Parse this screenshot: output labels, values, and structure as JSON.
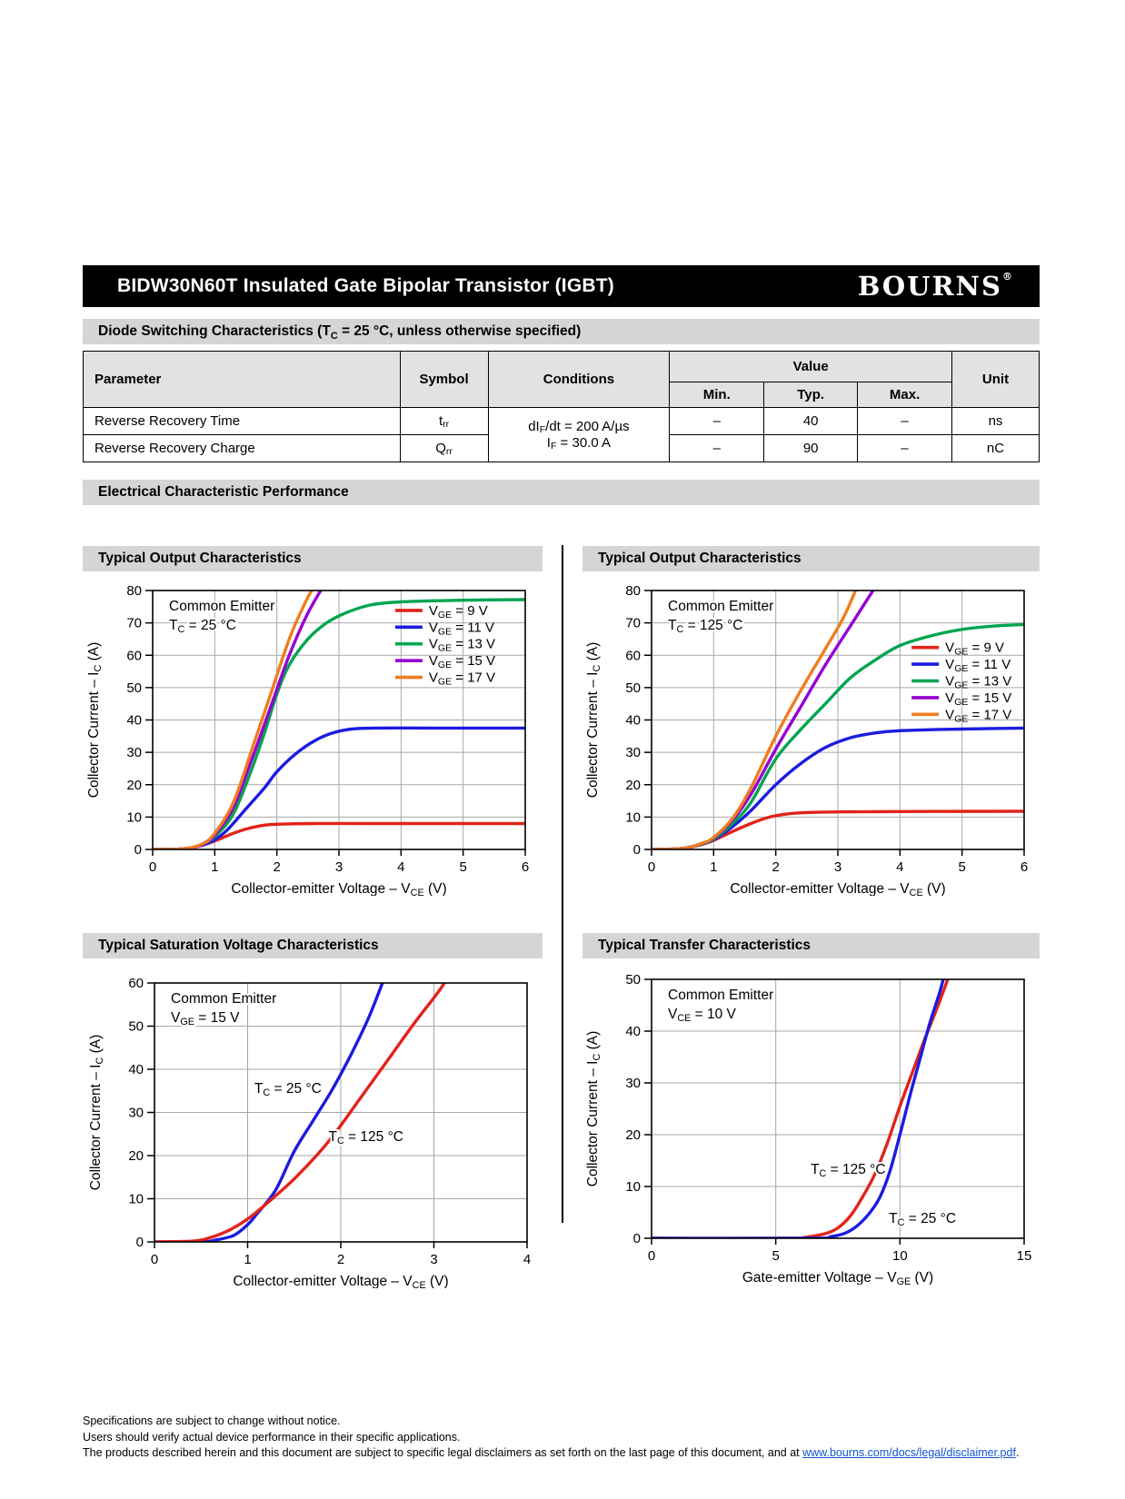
{
  "header": {
    "title": "BIDW30N60T Insulated Gate Bipolar Transistor (IGBT)",
    "logo": "BOURNS",
    "logo_reg": "®"
  },
  "section1": {
    "title": "Diode Switching Characteristics (T_{C} = 25 °C, unless otherwise specified)"
  },
  "section2": {
    "title": "Electrical Characteristic Performance"
  },
  "table": {
    "headers": {
      "parameter": "Parameter",
      "symbol": "Symbol",
      "conditions": "Conditions",
      "value": "Value",
      "min": "Min.",
      "typ": "Typ.",
      "max": "Max.",
      "unit": "Unit"
    },
    "conditions_lines": [
      "dI_{F}/dt = 200 A/µs",
      "I_{F} = 30.0 A"
    ],
    "rows": [
      {
        "parameter": "Reverse Recovery Time",
        "symbol": "t_{rr}",
        "min": "–",
        "typ": "40",
        "max": "–",
        "unit": "ns"
      },
      {
        "parameter": "Reverse Recovery Charge",
        "symbol": "Q_{rr}",
        "min": "–",
        "typ": "90",
        "max": "–",
        "unit": "nC"
      }
    ]
  },
  "footer": {
    "line1": "Specifications are subject to change without notice.",
    "line2": "Users should verify actual device performance in their specific applications.",
    "line3_pre": "The products described herein and this document are subject to specific legal disclaimers as set forth on the last page of this document, and at ",
    "line3_link": "www.bourns.com/docs/legal/disclaimer.pdf",
    "line3_post": "."
  },
  "colors": {
    "red": "#e2231a",
    "blue": "#1b1be0",
    "green": "#00a550",
    "purple": "#9400d3",
    "orange": "#f07d20"
  },
  "chart_data": [
    {
      "type": "line",
      "title": "Typical Output Characteristics",
      "xlabel": "Collector-emitter Voltage – V_{CE} (V)",
      "ylabel": "Collector Current – I_{C} (A)",
      "xlim": [
        0,
        6
      ],
      "ylim": [
        0,
        80
      ],
      "xticks": [
        0,
        1,
        2,
        3,
        4,
        5,
        6
      ],
      "yticks": [
        0,
        10,
        20,
        30,
        40,
        50,
        60,
        70,
        80
      ],
      "grid": true,
      "notes": [
        {
          "lines": [
            "Common Emitter",
            "T_{C} = 25 °C"
          ]
        }
      ],
      "legend": {
        "fx": 0.651,
        "fy": 0.077,
        "labels": [
          "V_{GE} = 9 V",
          "V_{GE} = 11 V",
          "V_{GE} = 13 V",
          "V_{GE} = 15 V",
          "V_{GE} = 17 V"
        ]
      },
      "labels": [],
      "series": [
        {
          "name": "VGE = 9 V",
          "color": "#e2231a",
          "points": [
            [
              0,
              0
            ],
            [
              0.45,
              0.15
            ],
            [
              0.7,
              0.8
            ],
            [
              0.9,
              1.9
            ],
            [
              1.1,
              3.4
            ],
            [
              1.3,
              5
            ],
            [
              1.5,
              6.3
            ],
            [
              1.7,
              7.2
            ],
            [
              1.9,
              7.7
            ],
            [
              2.2,
              7.9
            ],
            [
              2.6,
              8
            ],
            [
              3.5,
              8
            ],
            [
              6,
              8
            ]
          ]
        },
        {
          "name": "VGE = 11 V",
          "color": "#1b1be0",
          "points": [
            [
              0,
              0
            ],
            [
              0.5,
              0.2
            ],
            [
              0.8,
              1.3
            ],
            [
              1,
              3
            ],
            [
              1.2,
              6
            ],
            [
              1.5,
              12.5
            ],
            [
              1.8,
              19
            ],
            [
              2,
              24
            ],
            [
              2.3,
              29.5
            ],
            [
              2.6,
              33.5
            ],
            [
              2.9,
              36
            ],
            [
              3.2,
              37.2
            ],
            [
              3.6,
              37.5
            ],
            [
              4.5,
              37.5
            ],
            [
              6,
              37.5
            ]
          ]
        },
        {
          "name": "VGE = 13 V",
          "color": "#00a550",
          "points": [
            [
              0,
              0
            ],
            [
              0.5,
              0.2
            ],
            [
              0.8,
              1.5
            ],
            [
              1,
              4
            ],
            [
              1.3,
              11
            ],
            [
              1.6,
              25
            ],
            [
              1.8,
              36
            ],
            [
              2,
              48
            ],
            [
              2.2,
              57
            ],
            [
              2.5,
              65
            ],
            [
              2.8,
              70
            ],
            [
              3.1,
              73
            ],
            [
              3.5,
              75.5
            ],
            [
              4,
              76.5
            ],
            [
              5,
              77
            ],
            [
              6,
              77.2
            ]
          ]
        },
        {
          "name": "VGE = 15 V",
          "color": "#9400d3",
          "points": [
            [
              0,
              0
            ],
            [
              0.5,
              0.2
            ],
            [
              0.8,
              1.5
            ],
            [
              1,
              4.5
            ],
            [
              1.3,
              13
            ],
            [
              1.6,
              28
            ],
            [
              1.9,
              44
            ],
            [
              2.2,
              60
            ],
            [
              2.5,
              73
            ],
            [
              2.8,
              83
            ]
          ]
        },
        {
          "name": "VGE = 17 V",
          "color": "#f07d20",
          "points": [
            [
              0,
              0
            ],
            [
              0.5,
              0.2
            ],
            [
              0.8,
              1.7
            ],
            [
              1,
              5
            ],
            [
              1.3,
              14.5
            ],
            [
              1.6,
              31
            ],
            [
              1.9,
              48
            ],
            [
              2.2,
              65
            ],
            [
              2.45,
              76
            ],
            [
              2.65,
              83
            ]
          ]
        }
      ]
    },
    {
      "type": "line",
      "title": "Typical Output Characteristics",
      "xlabel": "Collector-emitter Voltage – V_{CE} (V)",
      "ylabel": "Collector Current – I_{C} (A)",
      "xlim": [
        0,
        6
      ],
      "ylim": [
        0,
        80
      ],
      "xticks": [
        0,
        1,
        2,
        3,
        4,
        5,
        6
      ],
      "yticks": [
        0,
        10,
        20,
        30,
        40,
        50,
        60,
        70,
        80
      ],
      "grid": true,
      "notes": [
        {
          "lines": [
            "Common Emitter",
            "T_{C} = 125 °C"
          ]
        }
      ],
      "legend": {
        "fx": 0.698,
        "fy": 0.22,
        "labels": [
          "V_{GE} = 9 V",
          "V_{GE} = 11 V",
          "V_{GE} = 13 V",
          "V_{GE} = 15 V",
          "V_{GE} = 17 V"
        ]
      },
      "labels": [],
      "series": [
        {
          "name": "VGE = 9 V",
          "color": "#e2231a",
          "points": [
            [
              0,
              0
            ],
            [
              0.5,
              0.3
            ],
            [
              0.8,
              1.5
            ],
            [
              1,
              2.8
            ],
            [
              1.3,
              5.5
            ],
            [
              1.6,
              8
            ],
            [
              1.9,
              10
            ],
            [
              2.2,
              11
            ],
            [
              2.5,
              11.4
            ],
            [
              3,
              11.6
            ],
            [
              4,
              11.7
            ],
            [
              6,
              11.8
            ]
          ]
        },
        {
          "name": "VGE = 11 V",
          "color": "#1b1be0",
          "points": [
            [
              0,
              0
            ],
            [
              0.5,
              0.3
            ],
            [
              0.8,
              1.6
            ],
            [
              1,
              3
            ],
            [
              1.3,
              7
            ],
            [
              1.6,
              12
            ],
            [
              2,
              20
            ],
            [
              2.4,
              26.5
            ],
            [
              2.8,
              31.5
            ],
            [
              3.2,
              34.5
            ],
            [
              3.6,
              36
            ],
            [
              4,
              36.7
            ],
            [
              4.5,
              37
            ],
            [
              5,
              37.2
            ],
            [
              6,
              37.5
            ]
          ]
        },
        {
          "name": "VGE = 13 V",
          "color": "#00a550",
          "points": [
            [
              0,
              0
            ],
            [
              0.5,
              0.3
            ],
            [
              0.8,
              1.7
            ],
            [
              1,
              3.2
            ],
            [
              1.3,
              8
            ],
            [
              1.6,
              14.5
            ],
            [
              2,
              28
            ],
            [
              2.4,
              37
            ],
            [
              2.8,
              45
            ],
            [
              3.2,
              53
            ],
            [
              3.6,
              58.5
            ],
            [
              4,
              63
            ],
            [
              4.5,
              66
            ],
            [
              5,
              68
            ],
            [
              5.5,
              69
            ],
            [
              6,
              69.5
            ]
          ]
        },
        {
          "name": "VGE = 15 V",
          "color": "#9400d3",
          "points": [
            [
              0,
              0
            ],
            [
              0.5,
              0.3
            ],
            [
              0.8,
              1.8
            ],
            [
              1,
              3.5
            ],
            [
              1.3,
              9
            ],
            [
              1.6,
              17
            ],
            [
              2,
              31
            ],
            [
              2.4,
              44
            ],
            [
              2.8,
              57
            ],
            [
              3.2,
              69
            ],
            [
              3.7,
              84
            ]
          ]
        },
        {
          "name": "VGE = 17 V",
          "color": "#f07d20",
          "points": [
            [
              0,
              0
            ],
            [
              0.5,
              0.3
            ],
            [
              0.8,
              1.8
            ],
            [
              1,
              3.7
            ],
            [
              1.3,
              9.5
            ],
            [
              1.6,
              19
            ],
            [
              2,
              35
            ],
            [
              2.4,
              49
            ],
            [
              2.8,
              62
            ],
            [
              3.1,
              72
            ],
            [
              3.35,
              83
            ]
          ]
        }
      ]
    },
    {
      "type": "line",
      "title": "Typical Saturation Voltage Characteristics",
      "xlabel": "Collector-emitter Voltage – V_{CE} (V)",
      "ylabel": "Collector Current – I_{C} (A)",
      "xlim": [
        0,
        4
      ],
      "ylim": [
        0,
        60
      ],
      "xticks": [
        0,
        1,
        2,
        3,
        4
      ],
      "yticks": [
        0,
        10,
        20,
        30,
        40,
        50,
        60
      ],
      "grid": true,
      "notes": [
        {
          "lines": [
            "Common Emitter",
            "V_{GE} = 15 V"
          ]
        }
      ],
      "legend": null,
      "labels": [
        {
          "fx": 0.268,
          "fy": 0.425,
          "text": "T_{C} = 25 °C"
        },
        {
          "fx": 0.467,
          "fy": 0.61,
          "text": "T_{C} = 125 °C"
        }
      ],
      "series": [
        {
          "name": "TC = 25 °C",
          "color": "#1b1be0",
          "points": [
            [
              0,
              0
            ],
            [
              0.5,
              0
            ],
            [
              0.65,
              0.4
            ],
            [
              0.85,
              1.5
            ],
            [
              1,
              4
            ],
            [
              1.1,
              6.5
            ],
            [
              1.3,
              12
            ],
            [
              1.5,
              21
            ],
            [
              1.7,
              28
            ],
            [
              1.9,
              35
            ],
            [
              2.1,
              43
            ],
            [
              2.3,
              52
            ],
            [
              2.5,
              63
            ]
          ]
        },
        {
          "name": "TC = 125 °C",
          "color": "#e2231a",
          "points": [
            [
              0,
              0
            ],
            [
              0.42,
              0.2
            ],
            [
              0.6,
              1
            ],
            [
              0.8,
              2.7
            ],
            [
              1,
              5.3
            ],
            [
              1.2,
              8.8
            ],
            [
              1.5,
              14.6
            ],
            [
              1.8,
              21.5
            ],
            [
              2,
              27
            ],
            [
              2.2,
              33
            ],
            [
              2.5,
              42
            ],
            [
              2.8,
              51
            ],
            [
              3.05,
              58
            ],
            [
              3.2,
              63
            ]
          ]
        }
      ]
    },
    {
      "type": "line",
      "title": "Typical Transfer Characteristics",
      "xlabel": "Gate-emitter Voltage – V_{GE} (V)",
      "ylabel": "Collector Current – I_{C} (A)",
      "xlim": [
        0,
        15
      ],
      "ylim": [
        0,
        50
      ],
      "xticks": [
        0,
        5,
        10,
        15
      ],
      "yticks": [
        0,
        10,
        20,
        30,
        40,
        50
      ],
      "grid": true,
      "notes": [
        {
          "lines": [
            "Common Emitter",
            "V_{CE} = 10 V"
          ]
        }
      ],
      "legend": null,
      "labels": [
        {
          "fx": 0.427,
          "fy": 0.75,
          "text": "T_{C} = 125 °C"
        },
        {
          "fx": 0.637,
          "fy": 0.94,
          "text": "T_{C} = 25 °C"
        }
      ],
      "series": [
        {
          "name": "TC = 125 °C",
          "color": "#e2231a",
          "points": [
            [
              0,
              0
            ],
            [
              5.5,
              0
            ],
            [
              6.2,
              0.2
            ],
            [
              7,
              0.9
            ],
            [
              7.5,
              2
            ],
            [
              8,
              4.3
            ],
            [
              8.5,
              8
            ],
            [
              9,
              12.5
            ],
            [
              9.5,
              18.5
            ],
            [
              10,
              25.5
            ],
            [
              10.5,
              32
            ],
            [
              11,
              38.5
            ],
            [
              11.5,
              44.5
            ],
            [
              12,
              51
            ]
          ]
        },
        {
          "name": "TC = 25 °C",
          "color": "#1b1be0",
          "points": [
            [
              0,
              0
            ],
            [
              6.5,
              0
            ],
            [
              7.2,
              0.3
            ],
            [
              7.8,
              1
            ],
            [
              8.3,
              2.5
            ],
            [
              8.8,
              5
            ],
            [
              9.2,
              8
            ],
            [
              9.6,
              13
            ],
            [
              10,
              20
            ],
            [
              10.4,
              27.5
            ],
            [
              10.8,
              34.5
            ],
            [
              11.2,
              41.5
            ],
            [
              11.6,
              47.5
            ],
            [
              11.85,
              52
            ]
          ]
        }
      ]
    }
  ]
}
